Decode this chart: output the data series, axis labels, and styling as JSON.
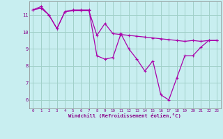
{
  "xlabel": "Windchill (Refroidissement éolien,°C)",
  "background_color": "#c8eef0",
  "grid_color": "#a0d0c8",
  "line_color": "#aa00aa",
  "x_ticks": [
    0,
    1,
    2,
    3,
    4,
    5,
    6,
    7,
    8,
    9,
    10,
    11,
    12,
    13,
    14,
    15,
    16,
    17,
    18,
    19,
    20,
    21,
    22,
    23
  ],
  "y_ticks": [
    6,
    7,
    8,
    9,
    10,
    11
  ],
  "ylim": [
    5.5,
    11.8
  ],
  "xlim": [
    -0.5,
    23.5
  ],
  "line1_x": [
    0,
    1,
    2,
    3,
    4,
    5,
    6,
    7,
    8,
    9,
    10,
    11,
    12,
    13,
    14,
    15,
    16,
    17,
    18,
    19,
    20,
    21,
    22,
    23
  ],
  "line1_y": [
    11.3,
    11.4,
    11.0,
    10.2,
    11.2,
    11.25,
    11.25,
    11.25,
    9.8,
    10.5,
    9.9,
    9.85,
    9.8,
    9.75,
    9.7,
    9.65,
    9.6,
    9.55,
    9.5,
    9.45,
    9.5,
    9.45,
    9.5,
    9.5
  ],
  "line2_x": [
    0,
    1,
    2,
    3,
    4,
    5,
    6,
    7,
    8,
    9,
    10,
    11,
    12,
    13,
    14,
    15,
    16,
    17,
    18,
    19,
    20,
    21,
    22,
    23
  ],
  "line2_y": [
    11.3,
    11.5,
    11.0,
    10.2,
    11.2,
    11.3,
    11.3,
    11.3,
    8.6,
    8.4,
    8.5,
    9.9,
    9.0,
    8.4,
    7.7,
    8.3,
    6.3,
    6.0,
    7.3,
    8.6,
    8.6,
    9.1,
    9.5,
    9.5
  ]
}
